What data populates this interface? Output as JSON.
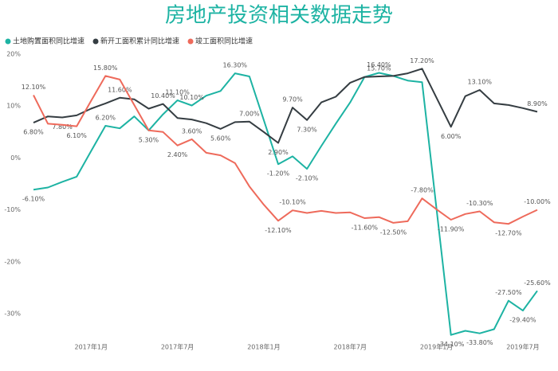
{
  "chart_data": {
    "type": "line",
    "title": "房地产投资相关数据走势",
    "categories": [
      null,
      null,
      null,
      null,
      "2017年1月",
      null,
      null,
      null,
      null,
      null,
      "2017年7月",
      null,
      null,
      null,
      null,
      null,
      "2018年1月",
      null,
      null,
      null,
      null,
      null,
      "2018年7月",
      null,
      null,
      null,
      null,
      null,
      "2019年1月",
      null,
      null,
      null,
      null,
      null,
      "2019年7月",
      null
    ],
    "series": [
      {
        "name": "土地购置面积同比增速",
        "color": "#1db3a3",
        "values": [
          -6.1,
          -5.7,
          -4.6,
          -3.6,
          1.3,
          6.2,
          5.7,
          8.0,
          5.3,
          8.4,
          11.1,
          10.1,
          12.0,
          12.9,
          16.3,
          15.7,
          7.3,
          -1.2,
          0.3,
          -2.1,
          2.3,
          6.6,
          10.7,
          15.6,
          16.4,
          15.8,
          14.9,
          14.6,
          -9.8,
          -34.1,
          -33.3,
          -33.8,
          -33.0,
          -27.5,
          -29.4,
          -25.6
        ],
        "value_labels": [
          "-6.10%",
          null,
          null,
          null,
          null,
          "6.20%",
          null,
          null,
          "5.30%",
          null,
          "11.10%",
          "10.10%",
          null,
          null,
          "16.30%",
          null,
          null,
          "-1.20%",
          null,
          "-2.10%",
          null,
          null,
          null,
          null,
          "16.40%",
          null,
          null,
          null,
          null,
          "-34.10%",
          null,
          "-33.80%",
          null,
          "-27.50%",
          "-29.40%",
          "-25.60%"
        ]
      },
      {
        "name": "新开工面积累计同比增速",
        "color": "#353d42",
        "values": [
          6.8,
          8.0,
          7.8,
          8.2,
          9.5,
          10.5,
          11.6,
          11.3,
          9.5,
          10.4,
          7.7,
          7.4,
          6.7,
          5.6,
          6.9,
          7.0,
          5.0,
          2.9,
          9.7,
          7.3,
          10.7,
          11.8,
          14.5,
          15.6,
          15.7,
          15.8,
          16.3,
          17.2,
          11.6,
          6.0,
          11.9,
          13.1,
          10.5,
          10.2,
          9.6,
          8.9
        ],
        "value_labels": [
          "6.80%",
          null,
          "7.80%",
          null,
          null,
          null,
          "11.60%",
          null,
          null,
          "10.40%",
          null,
          null,
          null,
          "5.60%",
          null,
          "7.00%",
          null,
          "2.90%",
          "9.70%",
          "7.30%",
          null,
          null,
          null,
          null,
          "15.70%",
          null,
          null,
          "17.20%",
          null,
          "6.00%",
          null,
          "13.10%",
          null,
          null,
          null,
          "8.90%"
        ]
      },
      {
        "name": "竣工面积同比增速",
        "color": "#ee6a5b",
        "values": [
          12.1,
          6.6,
          6.4,
          6.1,
          11.0,
          15.8,
          15.1,
          10.2,
          5.3,
          5.0,
          2.4,
          3.6,
          1.0,
          0.5,
          -1.0,
          -5.5,
          -9.0,
          -12.1,
          -10.1,
          -10.6,
          -10.2,
          -10.6,
          -10.5,
          -11.6,
          -11.4,
          -12.5,
          -12.2,
          -7.8,
          -9.9,
          -11.9,
          -10.8,
          -10.3,
          -12.4,
          -12.7,
          -11.3,
          -10.0
        ],
        "value_labels": [
          "12.10%",
          null,
          null,
          "6.10%",
          null,
          "15.80%",
          null,
          null,
          null,
          null,
          "2.40%",
          "3.60%",
          null,
          null,
          null,
          null,
          null,
          "-12.10%",
          "-10.10%",
          null,
          null,
          null,
          null,
          "-11.60%",
          null,
          "-12.50%",
          null,
          "-7.80%",
          null,
          "-11.90%",
          null,
          "-10.30%",
          null,
          "-12.70%",
          null,
          "-10.00%"
        ]
      }
    ],
    "ylim": [
      -32,
      20
    ],
    "yticks": [
      {
        "value": 20,
        "label": "20%"
      },
      {
        "value": 10,
        "label": "10%"
      },
      {
        "value": 0,
        "label": "0%"
      },
      {
        "value": -10,
        "label": "-10%"
      },
      {
        "value": -20,
        "label": "-20%"
      },
      {
        "value": -30,
        "label": "-30%"
      }
    ],
    "grid": false
  }
}
